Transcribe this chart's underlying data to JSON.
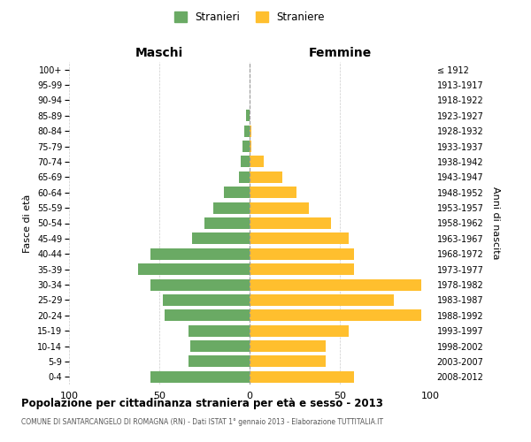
{
  "age_groups_bottom_to_top": [
    "0-4",
    "5-9",
    "10-14",
    "15-19",
    "20-24",
    "25-29",
    "30-34",
    "35-39",
    "40-44",
    "45-49",
    "50-54",
    "55-59",
    "60-64",
    "65-69",
    "70-74",
    "75-79",
    "80-84",
    "85-89",
    "90-94",
    "95-99",
    "100+"
  ],
  "birth_years_bottom_to_top": [
    "2008-2012",
    "2003-2007",
    "1998-2002",
    "1993-1997",
    "1988-1992",
    "1983-1987",
    "1978-1982",
    "1973-1977",
    "1968-1972",
    "1963-1967",
    "1958-1962",
    "1953-1957",
    "1948-1952",
    "1943-1947",
    "1938-1942",
    "1933-1937",
    "1928-1932",
    "1923-1927",
    "1918-1922",
    "1913-1917",
    "≤ 1912"
  ],
  "maschi_bottom_to_top": [
    55,
    34,
    33,
    34,
    47,
    48,
    55,
    62,
    55,
    32,
    25,
    20,
    14,
    6,
    5,
    4,
    3,
    2,
    0,
    0,
    0
  ],
  "femmine_bottom_to_top": [
    58,
    42,
    42,
    55,
    95,
    80,
    95,
    58,
    58,
    55,
    45,
    33,
    26,
    18,
    8,
    1,
    1,
    0,
    0,
    0,
    0
  ],
  "color_maschi": "#6aaa64",
  "color_femmine": "#ffbf2e",
  "title": "Popolazione per cittadinanza straniera per età e sesso - 2013",
  "subtitle": "COMUNE DI SANTARCANGELO DI ROMAGNA (RN) - Dati ISTAT 1° gennaio 2013 - Elaborazione TUTTITALIA.IT",
  "label_maschi": "Stranieri",
  "label_femmine": "Straniere",
  "header_left": "Maschi",
  "header_right": "Femmine",
  "ylabel_left": "Fasce di età",
  "ylabel_right": "Anni di nascita",
  "xlim": 100,
  "xticks": [
    -100,
    -50,
    0,
    50,
    100
  ],
  "background_color": "#ffffff",
  "bar_height": 0.75,
  "grid_color": "#cccccc",
  "vline_color": "#999999"
}
